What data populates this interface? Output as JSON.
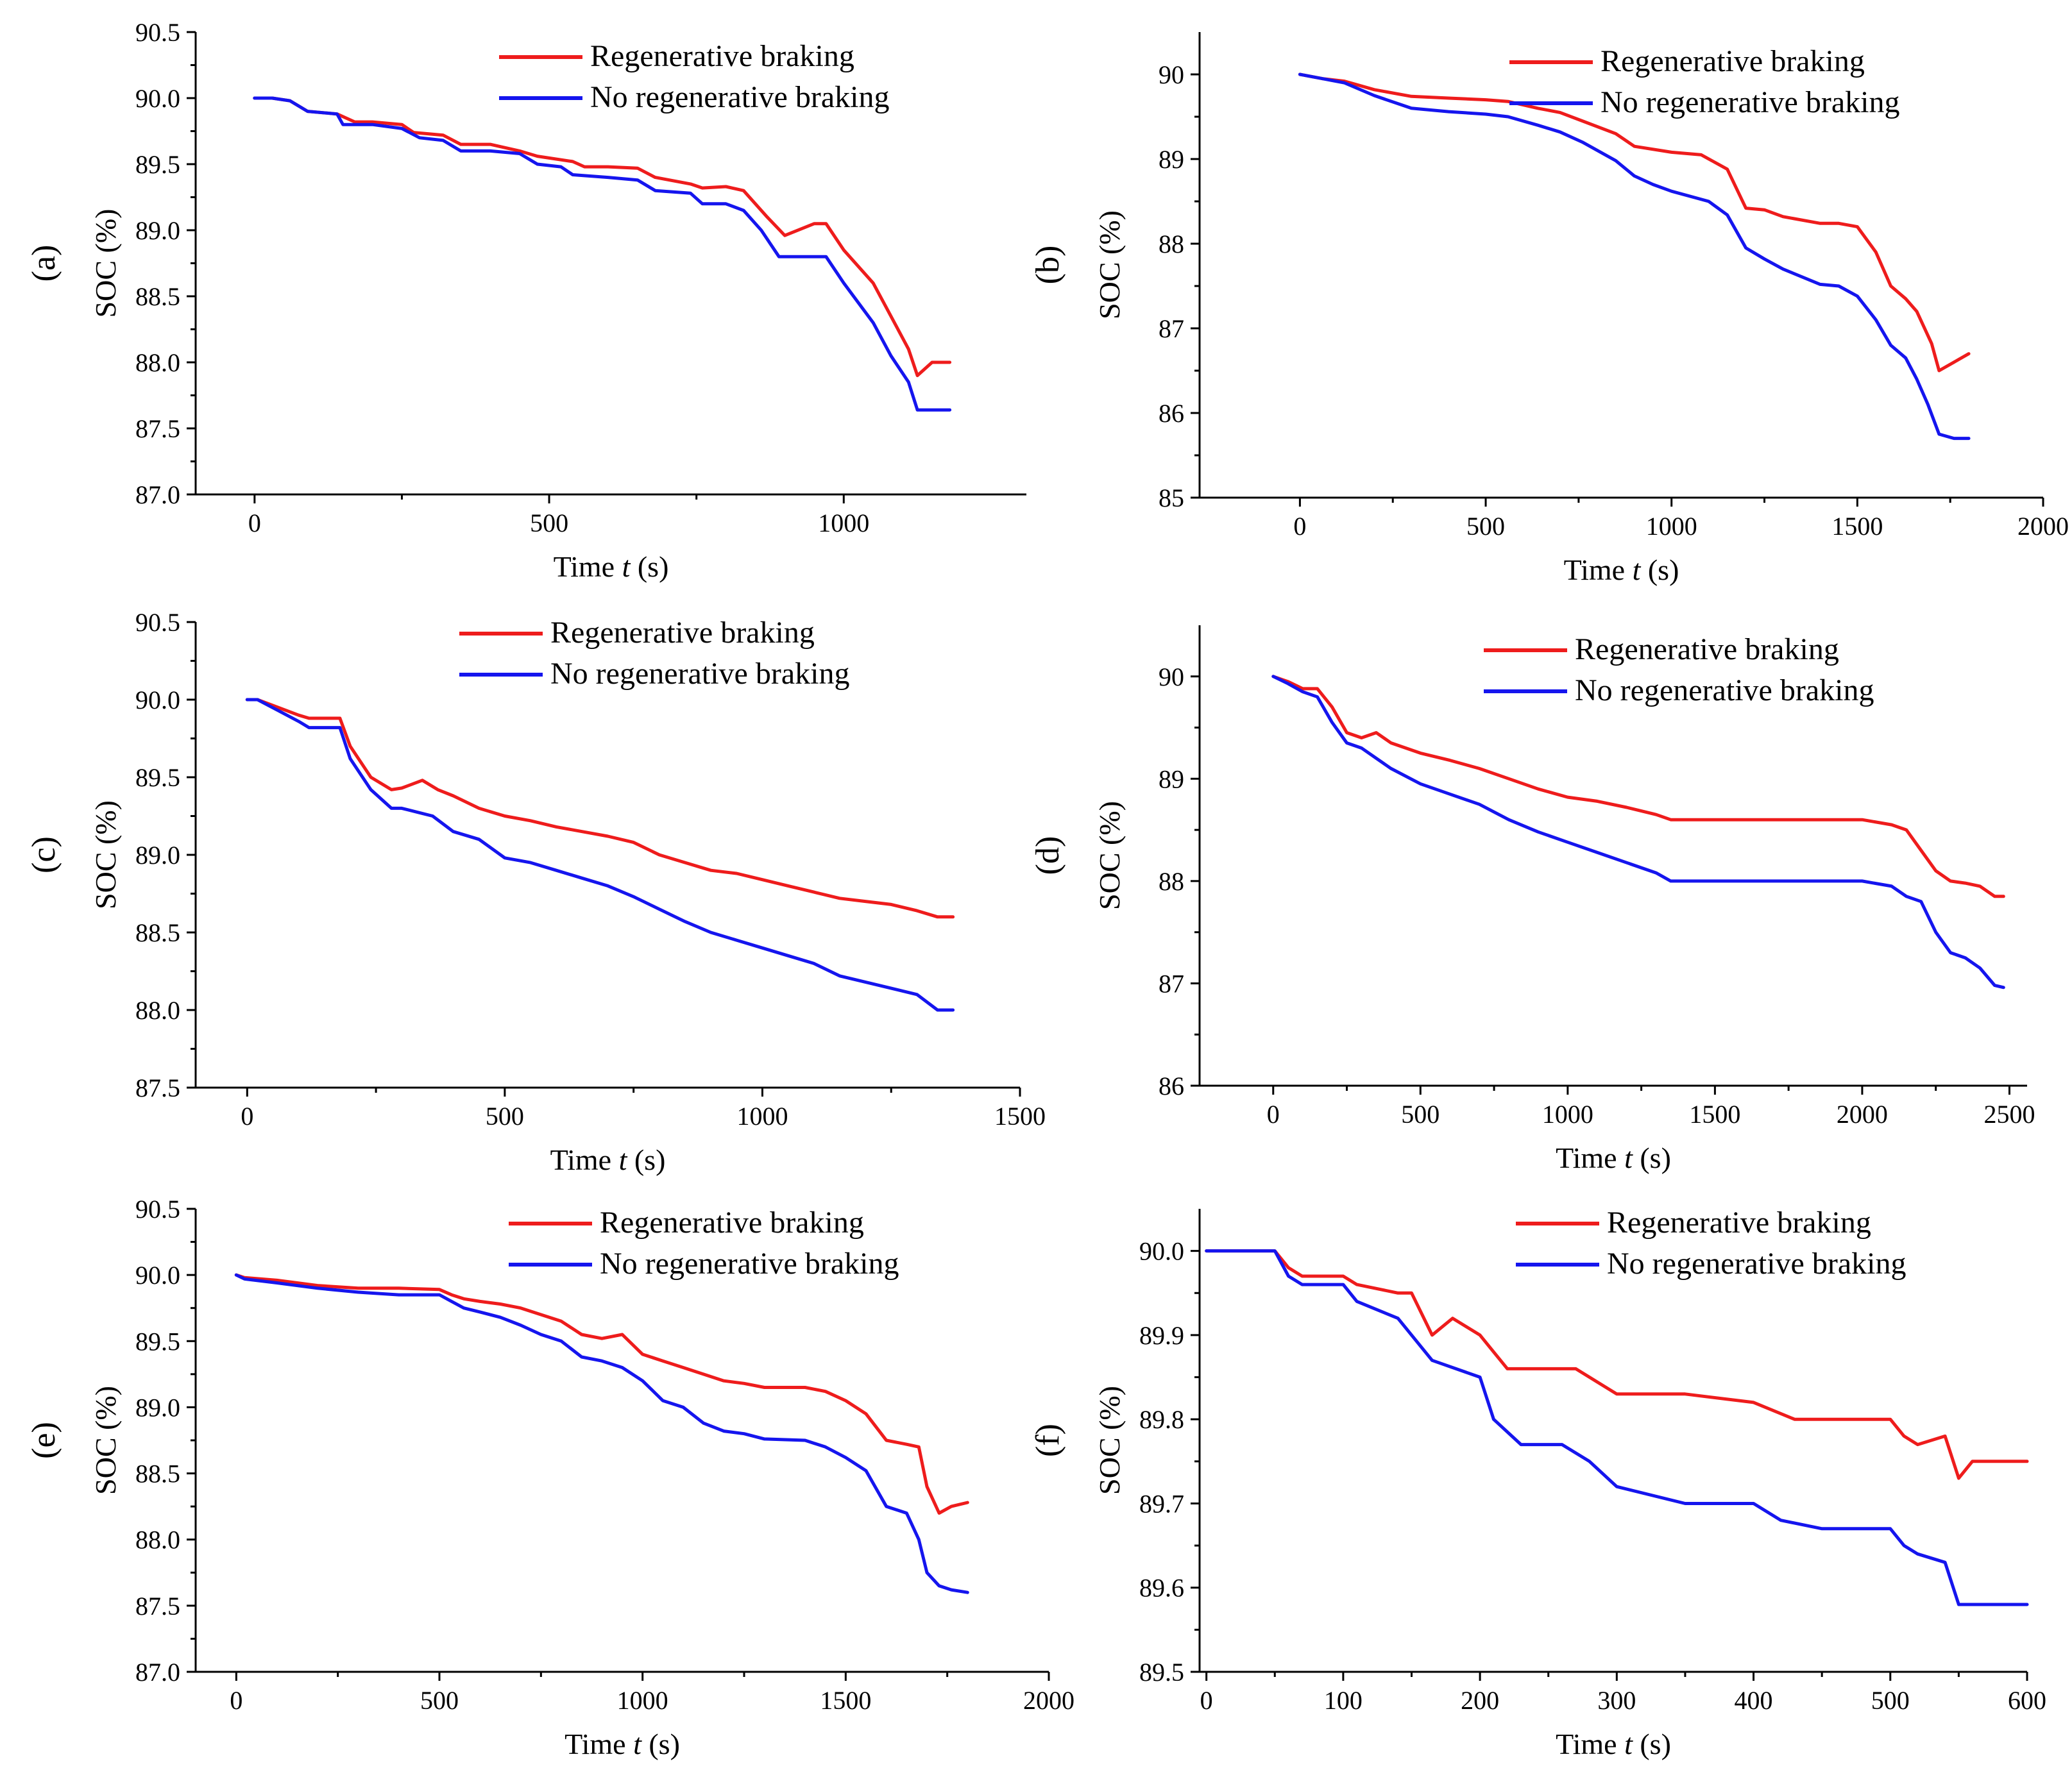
{
  "legend": {
    "regen_label": "Regenerative braking",
    "noregen_label": "No regenerative braking",
    "regen_color": "#ee1c1c",
    "noregen_color": "#1515ee"
  },
  "chart_data": [
    {
      "type": "line",
      "panel_label": "(a)",
      "xlabel_prefix": "Time ",
      "xlabel_var": "t",
      "xlabel_suffix": " (s)",
      "ylabel": "SOC (%)",
      "xlim": [
        -100,
        1310
      ],
      "ylim": [
        87.0,
        90.5
      ],
      "xticks": [
        0,
        500,
        1000
      ],
      "xtick_labels": [
        "0",
        "500",
        "1000"
      ],
      "yticks": [
        87.0,
        87.5,
        88.0,
        88.5,
        89.0,
        89.5,
        90.0,
        90.5
      ],
      "ytick_labels": [
        "87.0",
        "87.5",
        "88.0",
        "88.5",
        "89.0",
        "89.5",
        "90.0",
        "90.5"
      ],
      "series": [
        {
          "name": "Regenerative braking",
          "x": [
            0,
            30,
            60,
            90,
            140,
            170,
            200,
            250,
            270,
            320,
            350,
            400,
            450,
            480,
            540,
            560,
            600,
            650,
            680,
            740,
            760,
            800,
            830,
            870,
            900,
            950,
            970,
            1000,
            1050,
            1080,
            1110,
            1125,
            1150,
            1180
          ],
          "y": [
            90.0,
            90.0,
            89.98,
            89.9,
            89.88,
            89.82,
            89.82,
            89.8,
            89.74,
            89.72,
            89.65,
            89.65,
            89.6,
            89.56,
            89.52,
            89.48,
            89.48,
            89.47,
            89.4,
            89.35,
            89.32,
            89.33,
            89.3,
            89.1,
            88.96,
            89.05,
            89.05,
            88.85,
            88.6,
            88.35,
            88.1,
            87.9,
            88.0,
            88.0
          ]
        },
        {
          "name": "No regenerative braking",
          "x": [
            0,
            30,
            60,
            90,
            140,
            150,
            200,
            250,
            280,
            320,
            350,
            400,
            450,
            480,
            520,
            540,
            600,
            650,
            680,
            740,
            760,
            800,
            830,
            860,
            890,
            950,
            970,
            1000,
            1050,
            1080,
            1110,
            1125,
            1150,
            1180
          ],
          "y": [
            90.0,
            90.0,
            89.98,
            89.9,
            89.88,
            89.8,
            89.8,
            89.77,
            89.7,
            89.68,
            89.6,
            89.6,
            89.58,
            89.5,
            89.48,
            89.42,
            89.4,
            89.38,
            89.3,
            89.28,
            89.2,
            89.2,
            89.15,
            89.0,
            88.8,
            88.8,
            88.8,
            88.6,
            88.3,
            88.05,
            87.85,
            87.64,
            87.64,
            87.64
          ]
        }
      ]
    },
    {
      "type": "line",
      "panel_label": "(b)",
      "xlabel_prefix": "Time ",
      "xlabel_var": "t",
      "xlabel_suffix": " (s)",
      "ylabel": "SOC (%)",
      "xlim": [
        -270,
        2000
      ],
      "ylim": [
        85,
        90.5
      ],
      "xticks": [
        0,
        500,
        1000,
        1500,
        2000
      ],
      "xtick_labels": [
        "0",
        "500",
        "1000",
        "1500",
        "2000"
      ],
      "yticks": [
        85,
        86,
        87,
        88,
        89,
        90
      ],
      "ytick_labels": [
        "85",
        "86",
        "87",
        "88",
        "89",
        "90"
      ],
      "series": [
        {
          "name": "Regenerative braking",
          "x": [
            0,
            60,
            120,
            200,
            300,
            400,
            500,
            560,
            640,
            700,
            760,
            850,
            900,
            1000,
            1080,
            1150,
            1200,
            1250,
            1300,
            1400,
            1450,
            1500,
            1550,
            1590,
            1630,
            1660,
            1700,
            1720,
            1760,
            1800
          ],
          "y": [
            90.0,
            89.95,
            89.92,
            89.82,
            89.74,
            89.72,
            89.7,
            89.68,
            89.6,
            89.55,
            89.45,
            89.3,
            89.15,
            89.08,
            89.05,
            88.88,
            88.42,
            88.4,
            88.32,
            88.24,
            88.24,
            88.2,
            87.9,
            87.5,
            87.35,
            87.2,
            86.82,
            86.5,
            86.6,
            86.7
          ]
        },
        {
          "name": "No regenerative braking",
          "x": [
            0,
            60,
            120,
            200,
            300,
            400,
            500,
            560,
            640,
            700,
            760,
            850,
            900,
            950,
            1000,
            1100,
            1150,
            1200,
            1250,
            1300,
            1400,
            1450,
            1500,
            1550,
            1590,
            1630,
            1660,
            1690,
            1720,
            1760,
            1800
          ],
          "y": [
            90.0,
            89.95,
            89.9,
            89.75,
            89.6,
            89.56,
            89.53,
            89.5,
            89.4,
            89.32,
            89.2,
            88.98,
            88.8,
            88.7,
            88.62,
            88.5,
            88.34,
            87.95,
            87.82,
            87.7,
            87.52,
            87.5,
            87.38,
            87.1,
            86.8,
            86.65,
            86.4,
            86.1,
            85.75,
            85.7,
            85.7
          ]
        }
      ]
    },
    {
      "type": "line",
      "panel_label": "(c)",
      "xlabel_prefix": "Time ",
      "xlabel_var": "t",
      "xlabel_suffix": " (s)",
      "ylabel": "SOC (%)",
      "xlim": [
        -100,
        1500
      ],
      "ylim": [
        87.5,
        90.5
      ],
      "xticks": [
        0,
        500,
        1000,
        1500
      ],
      "xtick_labels": [
        "0",
        "500",
        "1000",
        "1500"
      ],
      "yticks": [
        87.5,
        88.0,
        88.5,
        89.0,
        89.5,
        90.0,
        90.5
      ],
      "ytick_labels": [
        "87.5",
        "88.0",
        "88.5",
        "89.0",
        "89.5",
        "90.0",
        "90.5"
      ],
      "series": [
        {
          "name": "Regenerative braking",
          "x": [
            0,
            20,
            60,
            100,
            120,
            180,
            200,
            240,
            280,
            300,
            340,
            370,
            400,
            450,
            500,
            550,
            600,
            650,
            700,
            750,
            800,
            850,
            900,
            950,
            1000,
            1050,
            1100,
            1150,
            1200,
            1250,
            1300,
            1340,
            1370
          ],
          "y": [
            90.0,
            90.0,
            89.95,
            89.9,
            89.88,
            89.88,
            89.7,
            89.5,
            89.42,
            89.43,
            89.48,
            89.42,
            89.38,
            89.3,
            89.25,
            89.22,
            89.18,
            89.15,
            89.12,
            89.08,
            89.0,
            88.95,
            88.9,
            88.88,
            88.84,
            88.8,
            88.76,
            88.72,
            88.7,
            88.68,
            88.64,
            88.6,
            88.6
          ]
        },
        {
          "name": "No regenerative braking",
          "x": [
            0,
            20,
            60,
            100,
            120,
            180,
            200,
            240,
            280,
            300,
            360,
            400,
            450,
            500,
            550,
            600,
            650,
            700,
            750,
            800,
            850,
            900,
            950,
            1000,
            1050,
            1100,
            1150,
            1200,
            1250,
            1300,
            1340,
            1370
          ],
          "y": [
            90.0,
            90.0,
            89.93,
            89.86,
            89.82,
            89.82,
            89.62,
            89.42,
            89.3,
            89.3,
            89.25,
            89.15,
            89.1,
            88.98,
            88.95,
            88.9,
            88.85,
            88.8,
            88.73,
            88.65,
            88.57,
            88.5,
            88.45,
            88.4,
            88.35,
            88.3,
            88.22,
            88.18,
            88.14,
            88.1,
            88.0,
            88.0
          ]
        }
      ]
    },
    {
      "type": "line",
      "panel_label": "(d)",
      "xlabel_prefix": "Time ",
      "xlabel_var": "t",
      "xlabel_suffix": " (s)",
      "ylabel": "SOC (%)",
      "xlim": [
        -250,
        2560
      ],
      "ylim": [
        86,
        90.5
      ],
      "xticks": [
        0,
        500,
        1000,
        1500,
        2000,
        2500
      ],
      "xtick_labels": [
        "0",
        "500",
        "1000",
        "1500",
        "2000",
        "2500"
      ],
      "yticks": [
        86,
        87,
        88,
        89,
        90
      ],
      "ytick_labels": [
        "86",
        "87",
        "88",
        "89",
        "90"
      ],
      "series": [
        {
          "name": "Regenerative braking",
          "x": [
            0,
            50,
            100,
            150,
            200,
            250,
            300,
            350,
            400,
            500,
            600,
            700,
            800,
            900,
            1000,
            1100,
            1200,
            1300,
            1350,
            1500,
            1700,
            1900,
            2000,
            2100,
            2150,
            2200,
            2250,
            2300,
            2350,
            2400,
            2450,
            2480
          ],
          "y": [
            90.0,
            89.95,
            89.88,
            89.88,
            89.7,
            89.45,
            89.4,
            89.45,
            89.35,
            89.25,
            89.18,
            89.1,
            89.0,
            88.9,
            88.82,
            88.78,
            88.72,
            88.65,
            88.6,
            88.6,
            88.6,
            88.6,
            88.6,
            88.55,
            88.5,
            88.3,
            88.1,
            88.0,
            87.98,
            87.95,
            87.85,
            87.85
          ]
        },
        {
          "name": "No regenerative braking",
          "x": [
            0,
            50,
            100,
            150,
            200,
            250,
            300,
            350,
            400,
            500,
            600,
            700,
            800,
            900,
            1000,
            1100,
            1200,
            1300,
            1350,
            1500,
            1700,
            1900,
            2000,
            2100,
            2150,
            2200,
            2250,
            2300,
            2350,
            2400,
            2450,
            2480
          ],
          "y": [
            90.0,
            89.93,
            89.85,
            89.8,
            89.55,
            89.35,
            89.3,
            89.2,
            89.1,
            88.95,
            88.85,
            88.75,
            88.6,
            88.48,
            88.38,
            88.28,
            88.18,
            88.08,
            88.0,
            88.0,
            88.0,
            88.0,
            88.0,
            87.95,
            87.85,
            87.8,
            87.5,
            87.3,
            87.25,
            87.15,
            86.98,
            86.96
          ]
        }
      ]
    },
    {
      "type": "line",
      "panel_label": "(e)",
      "xlabel_prefix": "Time ",
      "xlabel_var": "t",
      "xlabel_suffix": " (s)",
      "ylabel": "SOC (%)",
      "xlim": [
        -100,
        2000
      ],
      "ylim": [
        87.0,
        90.5
      ],
      "xticks": [
        0,
        500,
        1000,
        1500,
        2000
      ],
      "xtick_labels": [
        "0",
        "500",
        "1000",
        "1500",
        "2000"
      ],
      "yticks": [
        87.0,
        87.5,
        88.0,
        88.5,
        89.0,
        89.5,
        90.0,
        90.5
      ],
      "ytick_labels": [
        "87.0",
        "87.5",
        "88.0",
        "88.5",
        "89.0",
        "89.5",
        "90.0",
        "90.5"
      ],
      "series": [
        {
          "name": "Regenerative braking",
          "x": [
            0,
            20,
            100,
            200,
            300,
            400,
            500,
            530,
            560,
            600,
            650,
            700,
            750,
            800,
            850,
            900,
            950,
            1000,
            1050,
            1100,
            1150,
            1200,
            1250,
            1300,
            1400,
            1450,
            1500,
            1550,
            1600,
            1650,
            1680,
            1700,
            1730,
            1760,
            1800
          ],
          "y": [
            90.0,
            89.98,
            89.96,
            89.92,
            89.9,
            89.9,
            89.89,
            89.85,
            89.82,
            89.8,
            89.78,
            89.75,
            89.7,
            89.65,
            89.55,
            89.52,
            89.55,
            89.4,
            89.35,
            89.3,
            89.25,
            89.2,
            89.18,
            89.15,
            89.15,
            89.12,
            89.05,
            88.95,
            88.75,
            88.72,
            88.7,
            88.4,
            88.2,
            88.25,
            88.28
          ]
        },
        {
          "name": "No regenerative braking",
          "x": [
            0,
            20,
            100,
            200,
            300,
            400,
            500,
            530,
            560,
            600,
            650,
            700,
            750,
            800,
            850,
            900,
            950,
            1000,
            1050,
            1100,
            1150,
            1200,
            1250,
            1300,
            1400,
            1450,
            1500,
            1550,
            1600,
            1650,
            1680,
            1700,
            1730,
            1760,
            1800
          ],
          "y": [
            90.0,
            89.97,
            89.94,
            89.9,
            89.87,
            89.85,
            89.85,
            89.8,
            89.75,
            89.72,
            89.68,
            89.62,
            89.55,
            89.5,
            89.38,
            89.35,
            89.3,
            89.2,
            89.05,
            89.0,
            88.88,
            88.82,
            88.8,
            88.76,
            88.75,
            88.7,
            88.62,
            88.52,
            88.25,
            88.2,
            88.0,
            87.75,
            87.65,
            87.62,
            87.6
          ]
        }
      ]
    },
    {
      "type": "line",
      "panel_label": "(f)",
      "xlabel_prefix": "Time ",
      "xlabel_var": "t",
      "xlabel_suffix": " (s)",
      "ylabel": "SOC (%)",
      "xlim": [
        -5,
        600
      ],
      "ylim": [
        89.5,
        90.05
      ],
      "xticks": [
        0,
        100,
        200,
        300,
        400,
        500,
        600
      ],
      "xtick_labels": [
        "0",
        "100",
        "200",
        "300",
        "400",
        "500",
        "600"
      ],
      "yticks": [
        89.5,
        89.6,
        89.7,
        89.8,
        89.9,
        90.0
      ],
      "ytick_labels": [
        "89.5",
        "89.6",
        "89.7",
        "89.8",
        "89.9",
        "90.0"
      ],
      "series": [
        {
          "name": "Regenerative braking",
          "x": [
            0,
            50,
            60,
            70,
            100,
            110,
            140,
            150,
            165,
            180,
            200,
            210,
            220,
            235,
            245,
            270,
            280,
            300,
            350,
            400,
            430,
            450,
            500,
            510,
            520,
            540,
            550,
            560,
            600
          ],
          "y": [
            90.0,
            90.0,
            89.98,
            89.97,
            89.97,
            89.96,
            89.95,
            89.95,
            89.9,
            89.92,
            89.9,
            89.88,
            89.86,
            89.86,
            89.86,
            89.86,
            89.85,
            89.83,
            89.83,
            89.82,
            89.8,
            89.8,
            89.8,
            89.78,
            89.77,
            89.78,
            89.73,
            89.75,
            89.75
          ]
        },
        {
          "name": "No regenerative braking",
          "x": [
            0,
            50,
            60,
            70,
            100,
            110,
            140,
            150,
            165,
            200,
            210,
            230,
            260,
            280,
            300,
            350,
            400,
            420,
            450,
            500,
            510,
            520,
            540,
            550,
            560,
            600
          ],
          "y": [
            90.0,
            90.0,
            89.97,
            89.96,
            89.96,
            89.94,
            89.92,
            89.9,
            89.87,
            89.85,
            89.8,
            89.77,
            89.77,
            89.75,
            89.72,
            89.7,
            89.7,
            89.68,
            89.67,
            89.67,
            89.65,
            89.64,
            89.63,
            89.58,
            89.58,
            89.58
          ]
        }
      ]
    }
  ]
}
